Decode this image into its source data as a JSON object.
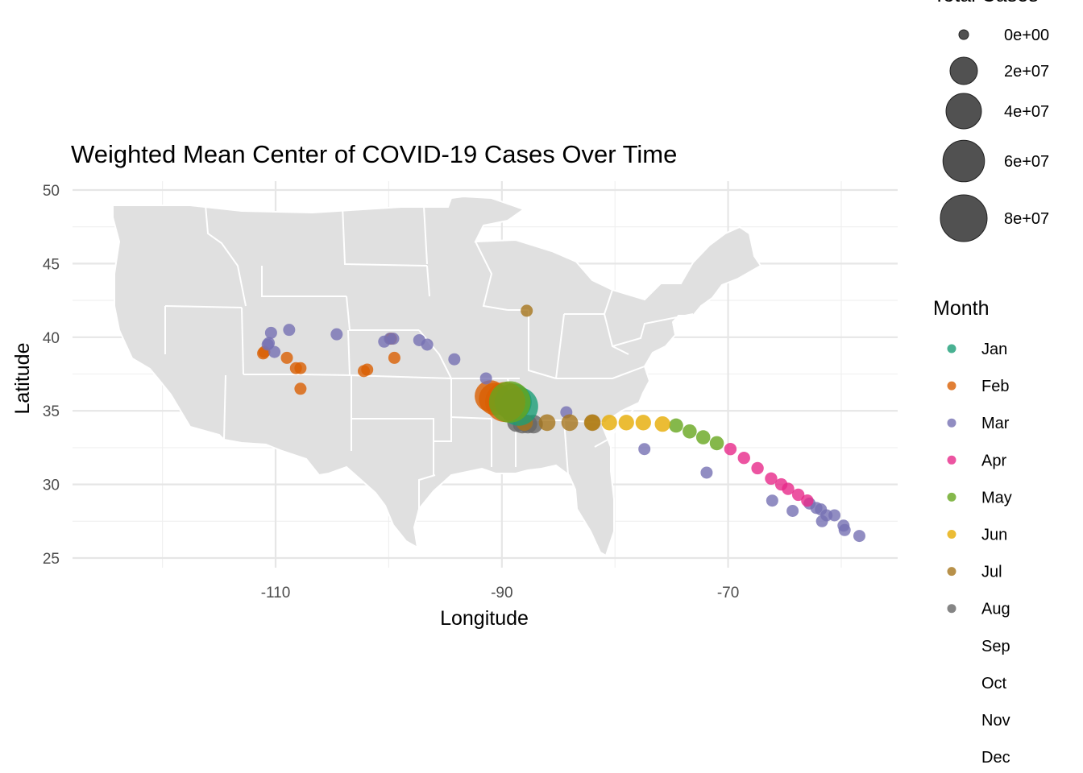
{
  "chart_data": {
    "type": "scatter",
    "title": "Weighted Mean Center of COVID-19 Cases Over Time",
    "xlabel": "Longitude",
    "ylabel": "Latitude",
    "xlim": [
      -126,
      -57
    ],
    "ylim": [
      24,
      51
    ],
    "x_ticks": [
      -110,
      -90,
      -70
    ],
    "y_ticks": [
      25,
      30,
      35,
      40,
      45,
      50
    ],
    "grid": true,
    "basemap": "gray United States state boundaries",
    "size_legend": {
      "title": "Total Cases",
      "entries": [
        {
          "label": "0e+00",
          "value": 0
        },
        {
          "label": "2e+07",
          "value": 20000000
        },
        {
          "label": "4e+07",
          "value": 40000000
        },
        {
          "label": "6e+07",
          "value": 60000000
        },
        {
          "label": "8e+07",
          "value": 80000000
        }
      ]
    },
    "color_legend": {
      "title": "Month",
      "entries": [
        {
          "label": "Jan",
          "color": "#1b9e77"
        },
        {
          "label": "Feb",
          "color": "#d95f02"
        },
        {
          "label": "Mar",
          "color": "#7570b3"
        },
        {
          "label": "Apr",
          "color": "#e7298a"
        },
        {
          "label": "May",
          "color": "#66a61e"
        },
        {
          "label": "Jun",
          "color": "#e6ab02"
        },
        {
          "label": "Jul",
          "color": "#a6761d"
        },
        {
          "label": "Aug",
          "color": "#666666"
        },
        {
          "label": "Sep",
          "color": null
        },
        {
          "label": "Oct",
          "color": null
        },
        {
          "label": "Nov",
          "color": null
        },
        {
          "label": "Dec",
          "color": null
        }
      ]
    },
    "series": [
      {
        "month": "Feb",
        "points": [
          {
            "x": -111.1,
            "y": 38.9,
            "cases": 50
          },
          {
            "x": -111.0,
            "y": 39.0,
            "cases": 50
          },
          {
            "x": -109.0,
            "y": 38.6,
            "cases": 50
          },
          {
            "x": -108.2,
            "y": 37.9,
            "cases": 50
          },
          {
            "x": -107.8,
            "y": 37.9,
            "cases": 50
          },
          {
            "x": -107.8,
            "y": 36.5,
            "cases": 50
          },
          {
            "x": -102.2,
            "y": 37.7,
            "cases": 50
          },
          {
            "x": -101.9,
            "y": 37.8,
            "cases": 50
          },
          {
            "x": -99.8,
            "y": 39.9,
            "cases": 60
          },
          {
            "x": -99.5,
            "y": 38.6,
            "cases": 60
          },
          {
            "x": -91.0,
            "y": 36.0,
            "cases": 30000000
          },
          {
            "x": -90.6,
            "y": 35.8,
            "cases": 32000000
          }
        ]
      },
      {
        "month": "Mar",
        "points": [
          {
            "x": -110.7,
            "y": 39.5,
            "cases": 100
          },
          {
            "x": -110.4,
            "y": 40.3,
            "cases": 100
          },
          {
            "x": -110.6,
            "y": 39.6,
            "cases": 100
          },
          {
            "x": -110.1,
            "y": 39.0,
            "cases": 100
          },
          {
            "x": -108.8,
            "y": 40.5,
            "cases": 100
          },
          {
            "x": -104.6,
            "y": 40.2,
            "cases": 100
          },
          {
            "x": -100.4,
            "y": 39.7,
            "cases": 100
          },
          {
            "x": -99.9,
            "y": 39.9,
            "cases": 100
          },
          {
            "x": -99.6,
            "y": 39.9,
            "cases": 100
          },
          {
            "x": -97.3,
            "y": 39.8,
            "cases": 100
          },
          {
            "x": -96.6,
            "y": 39.5,
            "cases": 100
          },
          {
            "x": -94.2,
            "y": 38.5,
            "cases": 100
          },
          {
            "x": -91.4,
            "y": 37.2,
            "cases": 100
          },
          {
            "x": -84.3,
            "y": 34.9,
            "cases": 100
          },
          {
            "x": -77.4,
            "y": 32.4,
            "cases": 100
          },
          {
            "x": -71.9,
            "y": 30.8,
            "cases": 100
          },
          {
            "x": -66.1,
            "y": 28.9,
            "cases": 100
          },
          {
            "x": -64.3,
            "y": 28.2,
            "cases": 100
          },
          {
            "x": -62.8,
            "y": 28.7,
            "cases": 100
          },
          {
            "x": -62.2,
            "y": 28.4,
            "cases": 100
          },
          {
            "x": -61.8,
            "y": 28.3,
            "cases": 100
          },
          {
            "x": -61.7,
            "y": 27.5,
            "cases": 100
          },
          {
            "x": -61.3,
            "y": 27.9,
            "cases": 100
          },
          {
            "x": -60.6,
            "y": 27.9,
            "cases": 100
          },
          {
            "x": -59.8,
            "y": 27.2,
            "cases": 100
          },
          {
            "x": -59.7,
            "y": 26.9,
            "cases": 100
          },
          {
            "x": -58.4,
            "y": 26.5,
            "cases": 100
          }
        ]
      },
      {
        "month": "Jul",
        "points": [
          {
            "x": -87.8,
            "y": 41.8,
            "cases": 100
          }
        ]
      },
      {
        "month": "Jan",
        "points": [
          {
            "x": -89.0,
            "y": 35.6,
            "cases": 45000000
          }
        ]
      },
      {
        "month": "Aug",
        "points": [
          {
            "x": -88.7,
            "y": 34.2,
            "cases": 6000000
          },
          {
            "x": -88.2,
            "y": 34.1,
            "cases": 6000000
          },
          {
            "x": -87.7,
            "y": 34.1,
            "cases": 6000000
          },
          {
            "x": -87.2,
            "y": 34.1,
            "cases": 6000000
          }
        ]
      },
      {
        "month": "Apr",
        "points": [
          {
            "x": -69.8,
            "y": 32.4,
            "cases": 1000000
          },
          {
            "x": -68.6,
            "y": 31.8,
            "cases": 1000000
          },
          {
            "x": -67.4,
            "y": 31.1,
            "cases": 1000000
          },
          {
            "x": -66.2,
            "y": 30.4,
            "cases": 1000000
          },
          {
            "x": -65.3,
            "y": 30.0,
            "cases": 1000000
          },
          {
            "x": -64.7,
            "y": 29.7,
            "cases": 1000000
          },
          {
            "x": -63.8,
            "y": 29.3,
            "cases": 1000000
          },
          {
            "x": -63.0,
            "y": 28.9,
            "cases": 1000000
          }
        ]
      },
      {
        "month": "May",
        "points": [
          {
            "x": -74.6,
            "y": 34.0,
            "cases": 2000000
          },
          {
            "x": -73.4,
            "y": 33.6,
            "cases": 2000000
          },
          {
            "x": -72.2,
            "y": 33.2,
            "cases": 2000000
          },
          {
            "x": -71.0,
            "y": 32.8,
            "cases": 2000000
          }
        ]
      },
      {
        "month": "Jun",
        "points": [
          {
            "x": -82.0,
            "y": 34.2,
            "cases": 3000000
          },
          {
            "x": -80.5,
            "y": 34.2,
            "cases": 3000000
          },
          {
            "x": -79.0,
            "y": 34.2,
            "cases": 3000000
          },
          {
            "x": -77.5,
            "y": 34.2,
            "cases": 3000000
          },
          {
            "x": -75.8,
            "y": 34.1,
            "cases": 3000000
          }
        ]
      },
      {
        "month": "Jul",
        "points": [
          {
            "x": -88.0,
            "y": 34.2,
            "cases": 4000000
          },
          {
            "x": -86.0,
            "y": 34.2,
            "cases": 4000000
          },
          {
            "x": -84.0,
            "y": 34.2,
            "cases": 4000000
          },
          {
            "x": -82.0,
            "y": 34.2,
            "cases": 4000000
          }
        ]
      },
      {
        "month": "Jan",
        "points": [
          {
            "x": -88.5,
            "y": 35.3,
            "cases": 50000000
          }
        ]
      },
      {
        "month": "Feb",
        "points": [
          {
            "x": -89.7,
            "y": 35.6,
            "cases": 55000000
          }
        ]
      },
      {
        "month": "May",
        "points": [
          {
            "x": -89.3,
            "y": 35.6,
            "cases": 60000000
          }
        ]
      }
    ]
  }
}
